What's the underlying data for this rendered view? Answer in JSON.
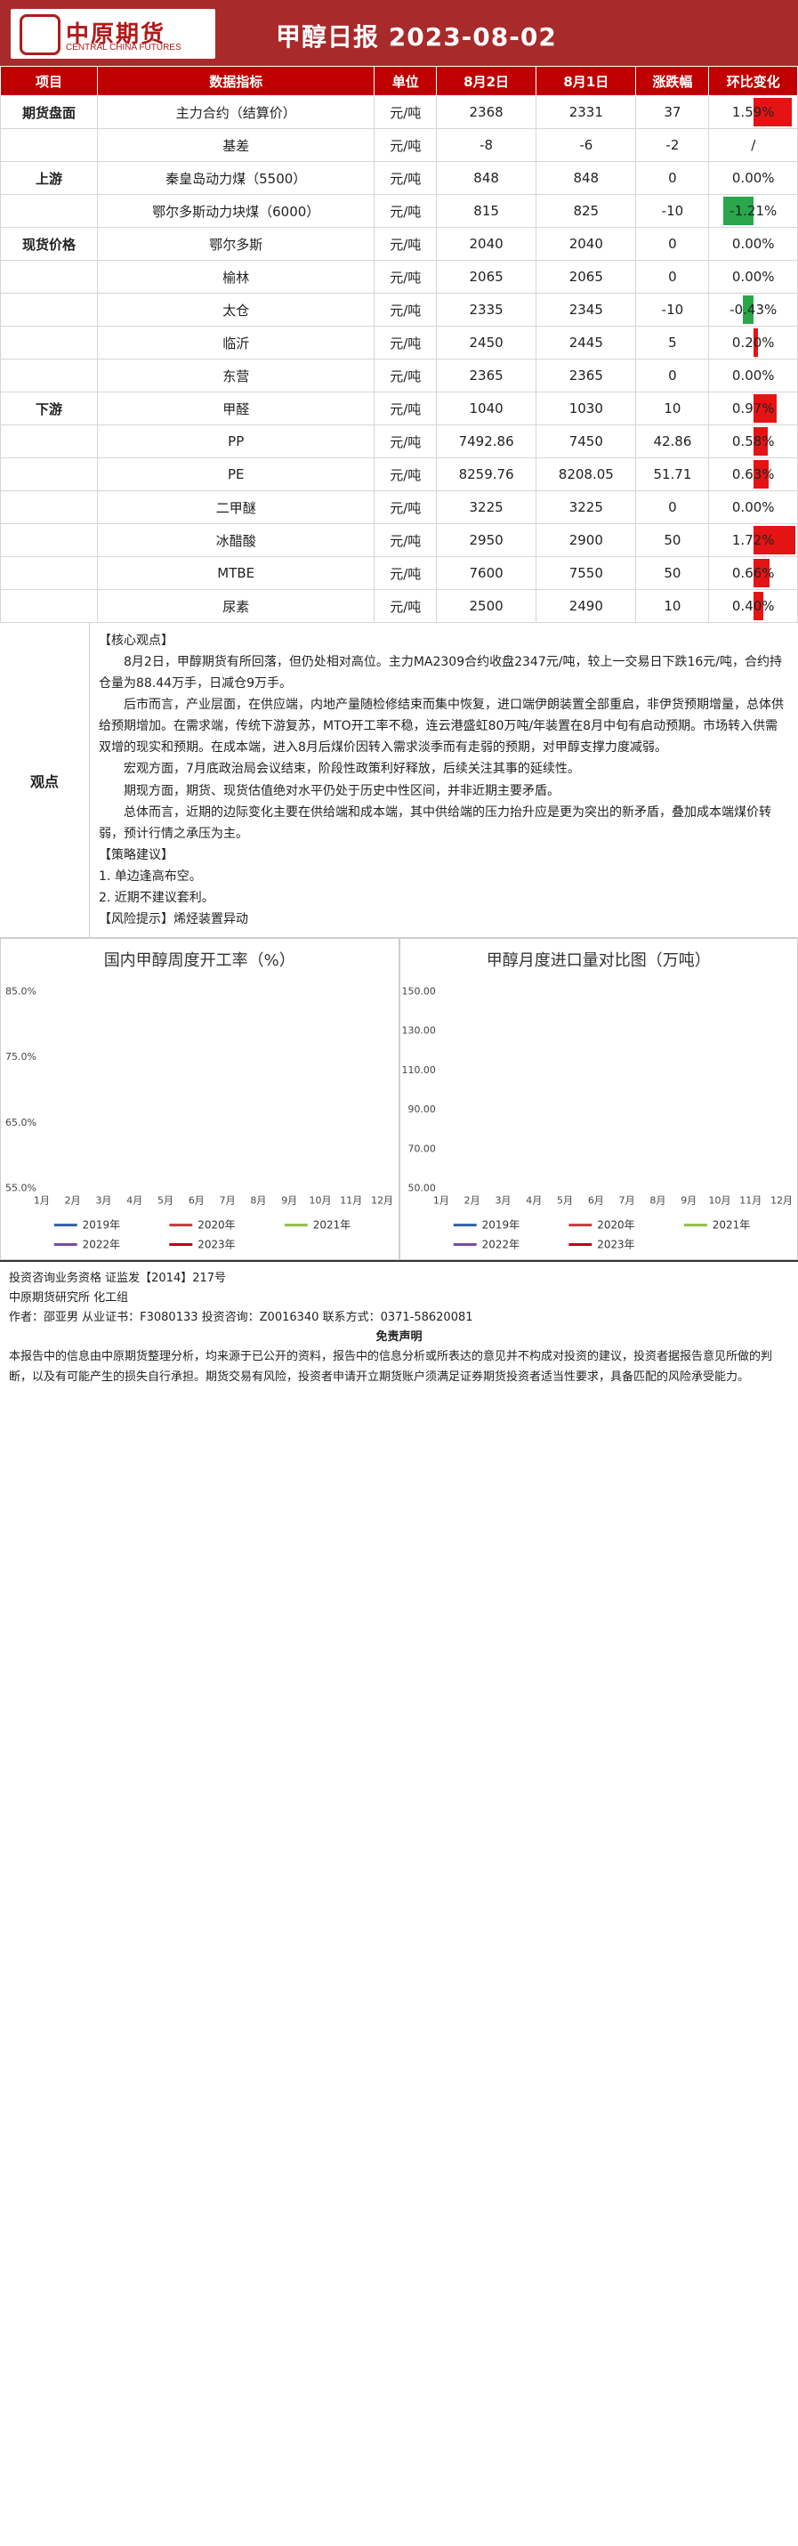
{
  "header": {
    "logo_cn": "中原期货",
    "logo_en": "CENTRAL CHINA FUTURES",
    "title": "甲醇日报  2023-08-02"
  },
  "table": {
    "columns": [
      "项目",
      "数据指标",
      "单位",
      "8月2日",
      "8月1日",
      "涨跌幅",
      "环比变化"
    ],
    "rows": [
      {
        "group": "期货盘面",
        "name": "主力合约（结算价）",
        "unit": "元/吨",
        "d1": "2368",
        "d0": "2331",
        "chg": "37",
        "pct": "1.59%",
        "pct_value": 1.59
      },
      {
        "group": "",
        "name": "基差",
        "unit": "元/吨",
        "d1": "-8",
        "d0": "-6",
        "chg": "-2",
        "pct": "/",
        "pct_value": null
      },
      {
        "group": "上游",
        "name": "秦皇岛动力煤（5500）",
        "unit": "元/吨",
        "d1": "848",
        "d0": "848",
        "chg": "0",
        "pct": "0.00%",
        "pct_value": 0
      },
      {
        "group": "",
        "name": "鄂尔多斯动力块煤（6000）",
        "unit": "元/吨",
        "d1": "815",
        "d0": "825",
        "chg": "-10",
        "pct": "-1.21%",
        "pct_value": -1.21
      },
      {
        "group": "现货价格",
        "name": "鄂尔多斯",
        "unit": "元/吨",
        "d1": "2040",
        "d0": "2040",
        "chg": "0",
        "pct": "0.00%",
        "pct_value": 0
      },
      {
        "group": "",
        "name": "榆林",
        "unit": "元/吨",
        "d1": "2065",
        "d0": "2065",
        "chg": "0",
        "pct": "0.00%",
        "pct_value": 0
      },
      {
        "group": "",
        "name": "太仓",
        "unit": "元/吨",
        "d1": "2335",
        "d0": "2345",
        "chg": "-10",
        "pct": "-0.43%",
        "pct_value": -0.43
      },
      {
        "group": "",
        "name": "临沂",
        "unit": "元/吨",
        "d1": "2450",
        "d0": "2445",
        "chg": "5",
        "pct": "0.20%",
        "pct_value": 0.2
      },
      {
        "group": "",
        "name": "东营",
        "unit": "元/吨",
        "d1": "2365",
        "d0": "2365",
        "chg": "0",
        "pct": "0.00%",
        "pct_value": 0
      },
      {
        "group": "下游",
        "name": "甲醛",
        "unit": "元/吨",
        "d1": "1040",
        "d0": "1030",
        "chg": "10",
        "pct": "0.97%",
        "pct_value": 0.97
      },
      {
        "group": "",
        "name": "PP",
        "unit": "元/吨",
        "d1": "7492.86",
        "d0": "7450",
        "chg": "42.86",
        "pct": "0.58%",
        "pct_value": 0.58
      },
      {
        "group": "",
        "name": "PE",
        "unit": "元/吨",
        "d1": "8259.76",
        "d0": "8208.05",
        "chg": "51.71",
        "pct": "0.63%",
        "pct_value": 0.63
      },
      {
        "group": "",
        "name": "二甲醚",
        "unit": "元/吨",
        "d1": "3225",
        "d0": "3225",
        "chg": "0",
        "pct": "0.00%",
        "pct_value": 0
      },
      {
        "group": "",
        "name": "冰醋酸",
        "unit": "元/吨",
        "d1": "2950",
        "d0": "2900",
        "chg": "50",
        "pct": "1.72%",
        "pct_value": 1.72
      },
      {
        "group": "",
        "name": "MTBE",
        "unit": "元/吨",
        "d1": "7600",
        "d0": "7550",
        "chg": "50",
        "pct": "0.66%",
        "pct_value": 0.66
      },
      {
        "group": "",
        "name": "尿素",
        "unit": "元/吨",
        "d1": "2500",
        "d0": "2490",
        "chg": "10",
        "pct": "0.40%",
        "pct_value": 0.4
      }
    ]
  },
  "viewpoint": {
    "label": "观点",
    "paragraphs": [
      "【核心观点】",
      "8月2日，甲醇期货有所回落，但仍处相对高位。主力MA2309合约收盘2347元/吨，较上一交易日下跌16元/吨，合约持仓量为88.44万手，日减仓9万手。",
      "后市而言，产业层面，在供应端，内地产量随检修结束而集中恢复，进口端伊朗装置全部重启，非伊货预期增量，总体供给预期增加。在需求端，传统下游复苏，MTO开工率不稳，连云港盛虹80万吨/年装置在8月中旬有启动预期。市场转入供需双增的现实和预期。在成本端，进入8月后煤价因转入需求淡季而有走弱的预期，对甲醇支撑力度减弱。",
      "宏观方面，7月底政治局会议结束，阶段性政策利好释放，后续关注其事的延续性。",
      "期现方面，期货、现货估值绝对水平仍处于历史中性区间，并非近期主要矛盾。",
      "总体而言，近期的边际变化主要在供给端和成本端，其中供给端的压力抬升应是更为突出的新矛盾，叠加成本端煤价转弱，预计行情之承压为主。",
      "【策略建议】",
      "1. 单边逢高布空。",
      "2. 近期不建议套利。",
      "【风险提示】烯烃装置异动"
    ]
  },
  "charts": [
    {
      "title": "国内甲醇周度开工率（%）",
      "yticks": [
        "85.0%",
        "75.0%",
        "65.0%",
        "55.0%"
      ],
      "xticks": [
        "1月",
        "2月",
        "3月",
        "4月",
        "5月",
        "6月",
        "7月",
        "8月",
        "9月",
        "10月",
        "11月",
        "12月"
      ],
      "legend": [
        "2019年",
        "2020年",
        "2021年",
        "2022年",
        "2023年"
      ]
    },
    {
      "title": "甲醇月度进口量对比图（万吨）",
      "yticks": [
        "150.00",
        "130.00",
        "110.00",
        "90.00",
        "70.00",
        "50.00"
      ],
      "xticks": [
        "1月",
        "2月",
        "3月",
        "4月",
        "5月",
        "6月",
        "7月",
        "8月",
        "9月",
        "10月",
        "11月",
        "12月"
      ],
      "legend": [
        "2019年",
        "2020年",
        "2021年",
        "2022年",
        "2023年"
      ]
    }
  ],
  "footer": {
    "line1": "投资咨询业务资格  证监发【2014】217号",
    "line2": "中原期货研究所  化工组",
    "line3": "作者：邵亚男    从业证书：F3080133    投资咨询：Z0016340    联系方式：0371-58620081",
    "disclaimer_title": "免责声明",
    "disclaimer": "本报告中的信息由中原期货整理分析，均来源于已公开的资料，报告中的信息分析或所表达的意见并不构成对投资的建议，投资者据报告意见所做的判断，以及有可能产生的损失自行承担。期货交易有风险，投资者申请开立期货账户须满足证券期货投资者适当性要求，具备匹配的风险承受能力。"
  },
  "colors": {
    "brand_red": "#c00000",
    "header_red": "#a82a2a",
    "pos_bar": "#e51414",
    "neg_bar": "#2aa74a"
  }
}
